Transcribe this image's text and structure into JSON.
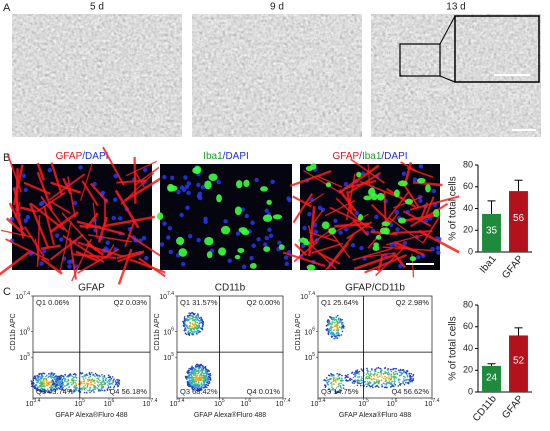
{
  "panel_a": {
    "label": "A",
    "images": [
      {
        "title": "5 d"
      },
      {
        "title": "9 d"
      },
      {
        "title": "13 d"
      }
    ]
  },
  "panel_b": {
    "label": "B",
    "images": [
      {
        "title_parts": [
          {
            "text": "GFAP",
            "color": "#e8101a"
          },
          {
            "text": "/DAPI",
            "color": "#1c2fd6"
          }
        ]
      },
      {
        "title_parts": [
          {
            "text": "Iba1",
            "color": "#1a9a2a"
          },
          {
            "text": "/DAPI",
            "color": "#1c2fd6"
          }
        ]
      },
      {
        "title_parts": [
          {
            "text": "GFAP",
            "color": "#e8101a"
          },
          {
            "text": "/",
            "color": "#1c2fd6"
          },
          {
            "text": "Iba1",
            "color": "#1a9a2a"
          },
          {
            "text": "/DAPI",
            "color": "#1c2fd6"
          }
        ]
      }
    ]
  },
  "panel_c": {
    "label": "C",
    "tick_base": "10",
    "plots": [
      {
        "title": "GFAP",
        "quadrants": [
          "Q1 0.06%",
          "Q2 0.03%",
          "Q3 43.74%",
          "Q4 56.18%"
        ],
        "ylabel": "CD11b APC",
        "xlabel": "GFAP Alexa®Fluro 488",
        "xlim": [
          3.4,
          7.4
        ],
        "ylim": [
          3.4,
          7.4
        ],
        "xticks": [
          3.4,
          5,
          6,
          7.4
        ],
        "yticks": [
          5,
          6,
          7.4
        ]
      },
      {
        "title": "CD11b",
        "quadrants": [
          "Q1 31.57%",
          "Q2 0.00%",
          "Q3 68.42%",
          "Q4 0.01%"
        ],
        "ylabel": "CD11b APC",
        "xlabel": "GFAP Alexa®Fluro 488",
        "xlim": [
          3.4,
          7.4
        ],
        "ylim": [
          3.4,
          7.4
        ],
        "xticks": [
          3.4,
          5,
          6,
          7.4
        ],
        "yticks": [
          5,
          6,
          7.4
        ]
      },
      {
        "title": "GFAP/CD11b",
        "quadrants": [
          "Q1 25.64%",
          "Q2 2.98%",
          "Q3 14.75%",
          "Q4 56.62%"
        ],
        "ylabel": "CD11b APC",
        "xlabel": "GFAP Alexa®Fluro 488",
        "xlim": [
          3.4,
          7.4
        ],
        "ylim": [
          3.4,
          7.4
        ],
        "xticks": [
          3.4,
          5,
          6,
          7.4
        ],
        "yticks": [
          5,
          6,
          7.4
        ]
      }
    ]
  },
  "chart_data": [
    {
      "type": "bar",
      "ylabel": "% of total cells",
      "categories": [
        "Iba1",
        "GFAP"
      ],
      "values": [
        35,
        56
      ],
      "errors": [
        12,
        10
      ],
      "colors": [
        "#1d8a3c",
        "#b3121c"
      ],
      "ylim": [
        0,
        80
      ],
      "yticks": [
        0,
        20,
        40,
        60,
        80
      ]
    },
    {
      "type": "bar",
      "ylabel": "% of total cells",
      "categories": [
        "CD11b",
        "GFAP"
      ],
      "values": [
        24,
        52
      ],
      "errors": [
        2,
        7
      ],
      "colors": [
        "#1d8a3c",
        "#b3121c"
      ],
      "ylim": [
        0,
        80
      ],
      "yticks": [
        0,
        20,
        40,
        60,
        80
      ]
    }
  ]
}
